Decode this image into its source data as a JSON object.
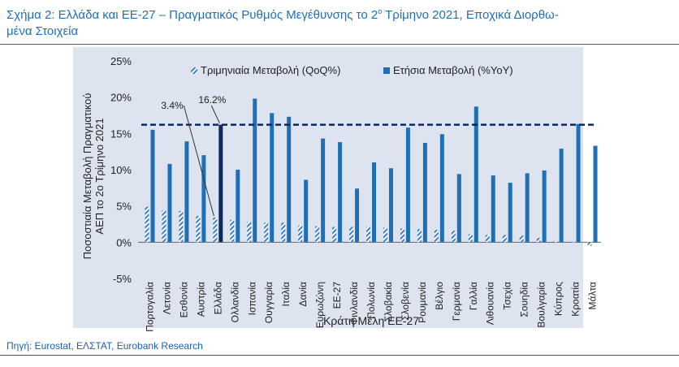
{
  "figure": {
    "title": "Σχήμα 2: Ελλάδα και ΕΕ-27 – Πραγματικός Ρυθμός Μεγέθυνσης το 2ο Τρίμηνο 2021, Εποχικά Διορθω-μένα Στοιχεία",
    "title_line1": "Σχήμα 2: Ελλάδα και ΕΕ-27 – Πραγματικός Ρυθμός Μεγέθυνσης το 2",
    "title_sup": "ο",
    "title_line1_end": " Τρίμηνο 2021, Εποχικά Διορθω-",
    "title_line2": "μένα Στοιχεία",
    "source": "Πηγή: Eurostat, ΕΛΣΤΑΤ, Eurobank Research"
  },
  "chart_data": {
    "type": "bar",
    "xlabel": "Κράτη Μέλη ΕΕ-27",
    "ylabel_line1": "Ποσοστιαία Μεταβολή Πραγματικού",
    "ylabel_line2": "ΑΕΠ το 2ο Τρίμηνο 2021",
    "ylim": [
      -5,
      25
    ],
    "yticks": [
      -5,
      0,
      5,
      10,
      15,
      20,
      25
    ],
    "ytick_labels": [
      "-5%",
      "0%",
      "5%",
      "10%",
      "15%",
      "20%",
      "25%"
    ],
    "legend_position": "top",
    "grid": false,
    "reference_line": 16.2,
    "categories": [
      "Πορτογαλία",
      "Λετονία",
      "Εσθονία",
      "Αυστρία",
      "Ελλάδα",
      "Ολλανδία",
      "Ισπανία",
      "Ουγγαρία",
      "Ιταλία",
      "Δανία",
      "Ευρωζώνη",
      "ΕΕ-27",
      "Φινλανδία",
      "Πολωνία",
      "Σλοβακία",
      "Σλοβενία",
      "Ρουμανία",
      "Βέλγιο",
      "Γερμανία",
      "Γαλλία",
      "Λιθουανία",
      "Τσεχία",
      "Σουηδία",
      "Βουλγαρία",
      "Κύπρος",
      "Κροατία",
      "Μάλτα"
    ],
    "series": [
      {
        "name": "Τριμηνιαία Μεταβολή (QoQ%)",
        "values": [
          4.9,
          4.4,
          4.3,
          3.6,
          3.4,
          3.1,
          2.8,
          2.7,
          2.7,
          2.3,
          2.2,
          2.1,
          2.1,
          2.1,
          2.0,
          1.9,
          1.8,
          1.7,
          1.6,
          1.1,
          1.0,
          1.0,
          0.9,
          0.6,
          0.1,
          0.0,
          -0.5
        ]
      },
      {
        "name": "Ετήσια Μεταβολή (%YoY)",
        "values": [
          15.5,
          10.8,
          13.9,
          12.0,
          16.2,
          10.0,
          19.8,
          17.8,
          17.3,
          8.6,
          14.3,
          13.8,
          7.4,
          11.0,
          10.2,
          15.8,
          13.7,
          14.9,
          9.4,
          18.7,
          9.2,
          8.2,
          9.5,
          9.9,
          12.9,
          16.3,
          13.3
        ]
      }
    ],
    "highlight_category": "Ελλάδα",
    "annotations": [
      {
        "text": "3.4%",
        "category": "Ελλάδα",
        "series": "Τριμηνιαία Μεταβολή (QoQ%)"
      },
      {
        "text": "16.2%",
        "category": "Ελλάδα",
        "series": "Ετήσια Μεταβολή (%YoY)"
      }
    ],
    "colors": {
      "yoy": "#1f6fb5",
      "highlight": "#0c2a5e",
      "qoq": "#3a7fc4",
      "reference": "#0c2a5e",
      "axis_text": "#222222"
    }
  }
}
